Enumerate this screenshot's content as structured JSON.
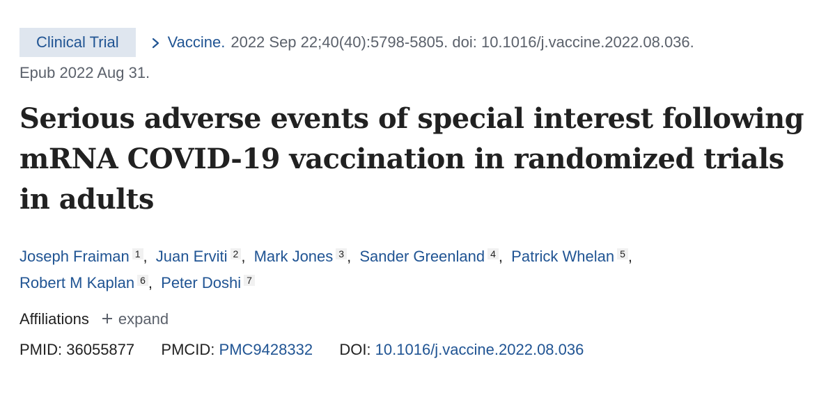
{
  "article_type_badge": "Clinical Trial",
  "citation": {
    "journal": "Vaccine.",
    "details": "2022 Sep 22;40(40):5798-5805. doi: 10.1016/j.vaccine.2022.08.036.",
    "epub": "Epub 2022 Aug 31."
  },
  "title": "Serious adverse events of special interest following mRNA COVID-19 vaccination in randomized trials in adults",
  "authors": [
    {
      "name": "Joseph Fraiman",
      "affil": "1"
    },
    {
      "name": "Juan Erviti",
      "affil": "2"
    },
    {
      "name": "Mark Jones",
      "affil": "3"
    },
    {
      "name": "Sander Greenland",
      "affil": "4"
    },
    {
      "name": "Patrick Whelan",
      "affil": "5"
    },
    {
      "name": "Robert M Kaplan",
      "affil": "6"
    },
    {
      "name": "Peter Doshi",
      "affil": "7"
    }
  ],
  "affiliations": {
    "label": "Affiliations",
    "expand_label": "expand"
  },
  "identifiers": {
    "pmid_label": "PMID:",
    "pmid": "36055877",
    "pmcid_label": "PMCID:",
    "pmcid": "PMC9428332",
    "doi_label": "DOI:",
    "doi": "10.1016/j.vaccine.2022.08.036"
  },
  "colors": {
    "link": "#205493",
    "badge_bg": "#dfe6ef",
    "muted_text": "#5b616b",
    "text": "#212121"
  }
}
